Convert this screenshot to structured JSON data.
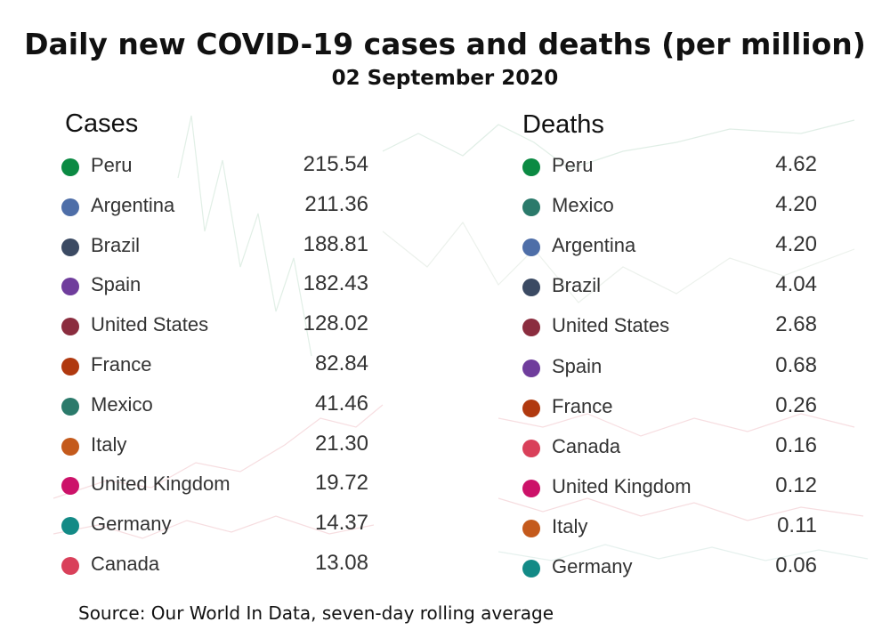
{
  "title": "Daily new COVID-19 cases and deaths (per million)",
  "subtitle": "02 September 2020",
  "source": "Source: Our World In Data, seven-day rolling average",
  "colors": {
    "Peru": "#0b8a43",
    "Argentina": "#4e6ea8",
    "Brazil": "#3b4a63",
    "Spain": "#6f3d9c",
    "United States": "#8b2d3f",
    "France": "#b0390f",
    "Mexico": "#2b7a6b",
    "Italy": "#c45a1c",
    "United Kingdom": "#cc1269",
    "Germany": "#138a86",
    "Canada": "#d9405a"
  },
  "chart_data": [
    {
      "type": "table",
      "title": "Cases",
      "categories": [
        "Peru",
        "Argentina",
        "Brazil",
        "Spain",
        "United States",
        "France",
        "Mexico",
        "Italy",
        "United Kingdom",
        "Germany",
        "Canada"
      ],
      "values": [
        "215.54",
        "211.36",
        "188.81",
        "182.43",
        "128.02",
        "82.84",
        "41.46",
        "21.30",
        "19.72",
        "14.37",
        "13.08"
      ]
    },
    {
      "type": "table",
      "title": "Deaths",
      "categories": [
        "Peru",
        "Mexico",
        "Argentina",
        "Brazil",
        "United States",
        "Spain",
        "France",
        "Canada",
        "United Kingdom",
        "Italy",
        "Germany"
      ],
      "values": [
        "4.62",
        "4.20",
        "4.20",
        "4.04",
        "2.68",
        "0.68",
        "0.26",
        "0.16",
        "0.12",
        "0.11",
        "0.06"
      ]
    }
  ]
}
